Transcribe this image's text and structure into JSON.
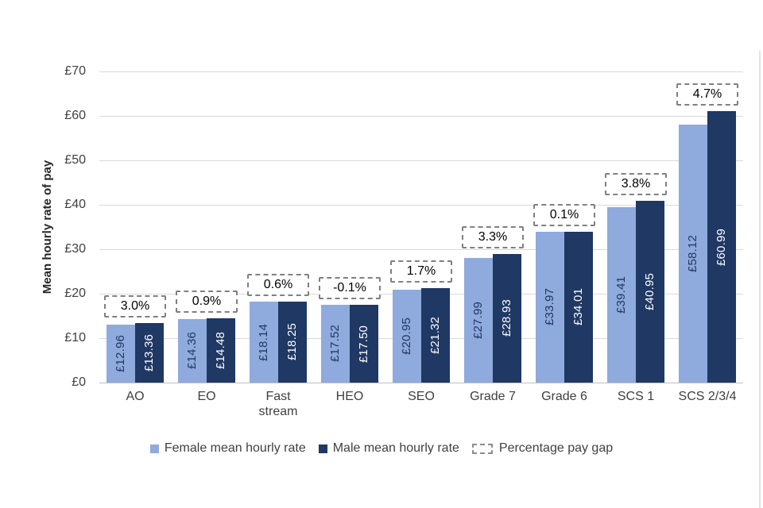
{
  "chart_data": {
    "type": "bar",
    "title": "",
    "ylabel": "Mean hourly rate of pay",
    "xlabel": "",
    "ylim": [
      0,
      70
    ],
    "y_tick_step": 10,
    "y_tick_labels": [
      "£0",
      "£10",
      "£20",
      "£30",
      "£40",
      "£50",
      "£60",
      "£70"
    ],
    "grid": "horizontal-only",
    "legend_position": "bottom",
    "categories": [
      "AO",
      "EO",
      "Fast\nstream",
      "HEO",
      "SEO",
      "Grade 7",
      "Grade 6",
      "SCS 1",
      "SCS 2/3/4"
    ],
    "series": [
      {
        "name": "Female mean hourly rate",
        "color": "#8FAADC",
        "label_color": "#1F3864",
        "values": [
          12.96,
          14.36,
          18.14,
          17.52,
          20.95,
          27.99,
          33.97,
          39.41,
          58.12
        ],
        "labels": [
          "£12.96",
          "£14.36",
          "£18.14",
          "£17.52",
          "£20.95",
          "£27.99",
          "£33.97",
          "£39.41",
          "£58.12"
        ]
      },
      {
        "name": "Male mean hourly rate",
        "color": "#1F3864",
        "label_color": "#FFFFFF",
        "values": [
          13.36,
          14.48,
          18.25,
          17.5,
          21.32,
          28.93,
          34.01,
          40.95,
          60.99
        ],
        "labels": [
          "£13.36",
          "£14.48",
          "£18.25",
          "£17.50",
          "£21.32",
          "£28.93",
          "£34.01",
          "£40.95",
          "£60.99"
        ]
      }
    ],
    "gap_series": {
      "name": "Percentage pay gap",
      "labels": [
        "3.0%",
        "0.9%",
        "0.6%",
        "-0.1%",
        "1.7%",
        "3.3%",
        "0.1%",
        "3.8%",
        "4.7%"
      ]
    },
    "colors": {
      "female": "#8FAADC",
      "male": "#1F3864",
      "gridline": "#D9D9D9",
      "axis_line": "#BFBFBF",
      "tick_text": "#404040",
      "gap_box_border": "#808080",
      "gap_text": "#000000"
    }
  }
}
